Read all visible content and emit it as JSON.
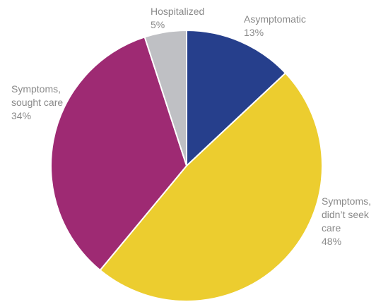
{
  "chart_data": {
    "type": "pie",
    "categories": [
      "Asymptomatic",
      "Symptoms, didn’t seek care",
      "Symptoms, sought care",
      "Hospitalized"
    ],
    "values": [
      13,
      48,
      34,
      5
    ],
    "value_labels": [
      "13%",
      "48%",
      "34%",
      "5%"
    ],
    "label_lines": [
      [
        "Asymptomatic"
      ],
      [
        "Symptoms,",
        "didn’t seek",
        "care"
      ],
      [
        "Symptoms,",
        "sought care"
      ],
      [
        "Hospitalized"
      ]
    ],
    "colors": [
      "#263f8c",
      "#eccd2f",
      "#9e2a73",
      "#bfc0c4"
    ],
    "start": "12 o'clock",
    "direction": "clockwise",
    "title": "",
    "legend": "none (direct labels)"
  }
}
